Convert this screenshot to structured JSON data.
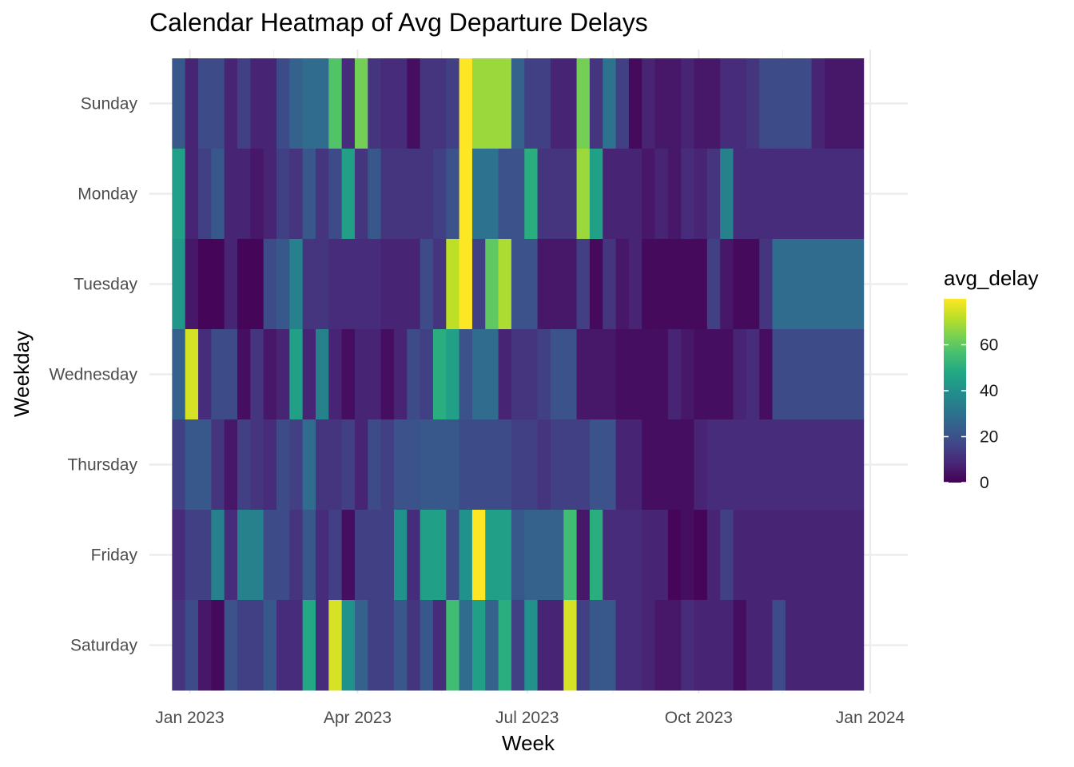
{
  "chart_data": {
    "type": "heatmap",
    "title": "Calendar Heatmap of Avg Departure Delays",
    "xlabel": "Week",
    "ylabel": "Weekday",
    "x_tick_labels": [
      "Jan 2023",
      "Apr 2023",
      "Jul 2023",
      "Oct 2023",
      "Jan 2024"
    ],
    "x_ticks": [
      "2023-01-01",
      "2023-04-01",
      "2023-07-01",
      "2023-10-01",
      "2024-01-01"
    ],
    "x_minor_ticks": [
      "2023-02-15",
      "2023-05-16",
      "2023-08-16",
      "2023-11-15"
    ],
    "weekdays": [
      "Sunday",
      "Monday",
      "Tuesday",
      "Wednesday",
      "Thursday",
      "Friday",
      "Saturday"
    ],
    "weeks": [
      "2022-12-26",
      "2023-01-02",
      "2023-01-09",
      "2023-01-16",
      "2023-01-23",
      "2023-01-30",
      "2023-02-06",
      "2023-02-13",
      "2023-02-20",
      "2023-02-27",
      "2023-03-06",
      "2023-03-13",
      "2023-03-20",
      "2023-03-27",
      "2023-04-03",
      "2023-04-10",
      "2023-04-17",
      "2023-04-24",
      "2023-05-01",
      "2023-05-08",
      "2023-05-15",
      "2023-05-22",
      "2023-05-29",
      "2023-06-05",
      "2023-06-12",
      "2023-06-19",
      "2023-06-26",
      "2023-07-03",
      "2023-07-10",
      "2023-07-17",
      "2023-07-24",
      "2023-07-31",
      "2023-08-07",
      "2023-08-14",
      "2023-08-21",
      "2023-08-28",
      "2023-09-04",
      "2023-09-11",
      "2023-09-18",
      "2023-09-25",
      "2023-10-02",
      "2023-10-09",
      "2023-10-16",
      "2023-10-23",
      "2023-10-30",
      "2023-11-06",
      "2023-11-13",
      "2023-11-20",
      "2023-11-27",
      "2023-12-04",
      "2023-12-11",
      "2023-12-18",
      "2023-12-25"
    ],
    "values": [
      [
        22,
        8,
        18,
        18,
        8,
        15,
        8,
        8,
        18,
        25,
        28,
        28,
        58,
        10,
        63,
        12,
        10,
        10,
        3,
        12,
        12,
        15,
        80,
        68,
        68,
        68,
        25,
        15,
        15,
        8,
        8,
        63,
        12,
        30,
        15,
        2,
        8,
        5,
        5,
        8,
        5,
        5,
        10,
        10,
        12,
        18,
        18,
        18,
        18,
        8,
        5,
        5,
        5
      ],
      [
        45,
        8,
        15,
        22,
        8,
        8,
        5,
        8,
        15,
        12,
        22,
        12,
        18,
        45,
        12,
        22,
        12,
        12,
        12,
        12,
        15,
        20,
        80,
        30,
        30,
        20,
        20,
        50,
        12,
        12,
        12,
        68,
        45,
        8,
        8,
        8,
        5,
        8,
        5,
        10,
        8,
        12,
        35,
        10,
        10,
        10,
        10,
        10,
        10,
        10,
        10,
        10,
        10
      ],
      [
        42,
        5,
        1,
        1,
        8,
        1,
        1,
        18,
        22,
        35,
        12,
        12,
        10,
        10,
        10,
        10,
        8,
        8,
        8,
        18,
        12,
        72,
        80,
        15,
        60,
        70,
        20,
        20,
        5,
        5,
        5,
        15,
        2,
        12,
        5,
        8,
        2,
        2,
        2,
        2,
        2,
        15,
        5,
        2,
        2,
        12,
        28,
        28,
        28,
        28,
        28,
        28,
        28
      ],
      [
        25,
        75,
        10,
        18,
        18,
        3,
        12,
        5,
        8,
        45,
        8,
        35,
        8,
        3,
        8,
        8,
        3,
        8,
        18,
        15,
        50,
        45,
        20,
        28,
        28,
        8,
        12,
        12,
        15,
        20,
        20,
        5,
        5,
        5,
        3,
        3,
        3,
        3,
        8,
        5,
        3,
        3,
        3,
        8,
        10,
        3,
        18,
        18,
        18,
        18,
        18,
        18,
        18
      ],
      [
        15,
        22,
        22,
        12,
        5,
        15,
        12,
        10,
        18,
        15,
        28,
        12,
        12,
        15,
        8,
        18,
        15,
        20,
        20,
        22,
        22,
        22,
        18,
        18,
        18,
        18,
        15,
        15,
        12,
        15,
        15,
        15,
        20,
        20,
        8,
        8,
        3,
        3,
        3,
        3,
        8,
        10,
        10,
        10,
        10,
        10,
        10,
        10,
        10,
        10,
        10,
        10,
        10
      ],
      [
        10,
        15,
        15,
        35,
        10,
        35,
        35,
        18,
        18,
        12,
        22,
        10,
        15,
        3,
        15,
        15,
        15,
        40,
        10,
        45,
        45,
        18,
        40,
        80,
        45,
        45,
        22,
        25,
        25,
        25,
        55,
        5,
        50,
        10,
        10,
        10,
        8,
        8,
        1,
        3,
        1,
        8,
        15,
        8,
        8,
        8,
        8,
        8,
        8,
        8,
        8,
        8,
        8
      ],
      [
        12,
        18,
        5,
        2,
        20,
        15,
        15,
        22,
        10,
        10,
        48,
        10,
        75,
        40,
        25,
        15,
        15,
        22,
        12,
        22,
        10,
        55,
        28,
        45,
        25,
        50,
        15,
        40,
        8,
        8,
        75,
        15,
        22,
        22,
        10,
        10,
        8,
        5,
        5,
        10,
        8,
        8,
        8,
        3,
        8,
        8,
        18,
        8,
        8,
        8,
        8,
        8,
        8
      ]
    ],
    "scale_type": "continuous",
    "colormap": "viridis",
    "fill_range": [
      0,
      80
    ],
    "legend_title": "avg_delay",
    "legend_ticks": [
      0,
      20,
      40,
      60
    ],
    "legend_tick_labels": [
      "0",
      "20",
      "40",
      "60"
    ],
    "legend_position": "right",
    "grid": true
  }
}
